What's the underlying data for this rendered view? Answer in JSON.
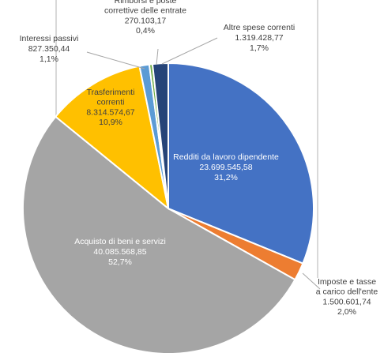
{
  "chart_data": {
    "type": "pie",
    "slices": [
      {
        "name": "Redditi da lavoro dipendente",
        "value_text": "23.699.545,58",
        "pct_text": "31,2%",
        "value": 23699545.58,
        "color": "#4472C4"
      },
      {
        "name": "Imposte e tasse a carico dell'ente",
        "value_text": "1.500.601,74",
        "pct_text": "2,0%",
        "value": 1500601.74,
        "color": "#ED7D31"
      },
      {
        "name": "Acquisto di beni e servizi",
        "value_text": "40.085.568,85",
        "pct_text": "52,7%",
        "value": 40085568.85,
        "color": "#A5A5A5"
      },
      {
        "name": "Trasferimenti correnti",
        "value_text": "8.314.574,67",
        "pct_text": "10,9%",
        "value": 8314574.67,
        "color": "#FFC000"
      },
      {
        "name": "Interessi passivi",
        "value_text": "827.350,44",
        "pct_text": "1,1%",
        "value": 827350.44,
        "color": "#5B9BD5"
      },
      {
        "name": "Rimborsi e poste correttive delle entrate",
        "value_text": "270.103,17",
        "pct_text": "0,4%",
        "value": 270103.17,
        "color": "#70AD47"
      },
      {
        "name": "Altre spese correnti",
        "value_text": "1.319.428,77",
        "pct_text": "1,7%",
        "value": 1319428.77,
        "color": "#264478"
      }
    ]
  }
}
